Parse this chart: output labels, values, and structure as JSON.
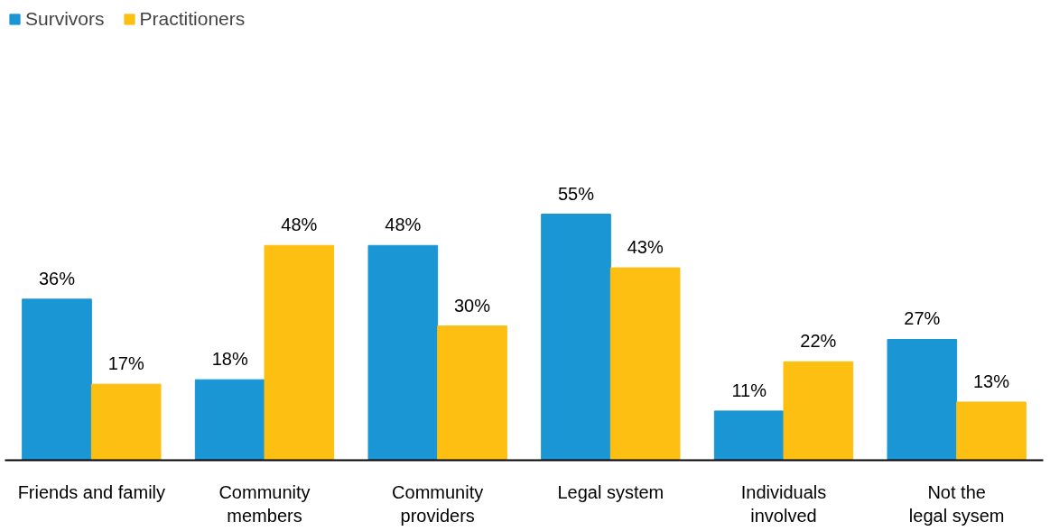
{
  "chart_data": {
    "type": "bar",
    "categories": [
      "Friends and family",
      "Community\nmembers",
      "Community\nproviders",
      "Legal system",
      "Individuals\ninvolved",
      "Not the\nlegal sysem"
    ],
    "series": [
      {
        "name": "Survivors",
        "color": "#1a96d4",
        "values": [
          36,
          18,
          48,
          55,
          11,
          27
        ],
        "value_labels": [
          "36%",
          "18%",
          "48%",
          "55%",
          "11%",
          "27%"
        ]
      },
      {
        "name": "Practitioners",
        "color": "#fcbf12",
        "values": [
          17,
          48,
          30,
          43,
          22,
          13
        ],
        "value_labels": [
          "17%",
          "48%",
          "30%",
          "43%",
          "22%",
          "13%"
        ]
      }
    ],
    "tick_labels": "x",
    "legend": "top left"
  }
}
